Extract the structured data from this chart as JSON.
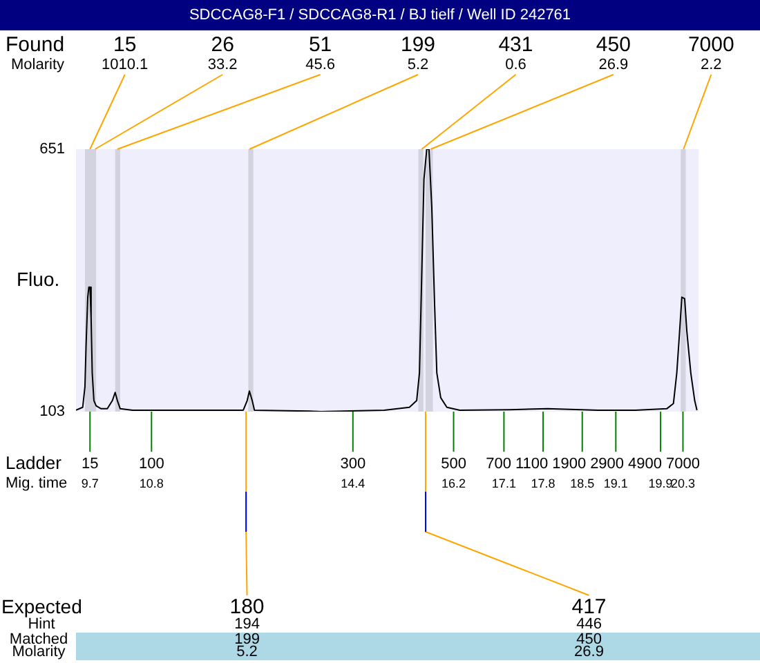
{
  "chart_data": {
    "type": "line",
    "title": "SDCCAG8-F1 / SDCCAG8-R1 / BJ tielf / Well ID 242761",
    "ylabel": "Fluo.",
    "x": [
      9.45,
      9.57,
      9.61,
      9.63,
      9.66,
      9.68,
      9.7,
      9.72,
      9.74,
      9.77,
      9.81,
      9.9,
      10.01,
      10.1,
      10.15,
      10.19,
      10.24,
      10.46,
      11.59,
      12.44,
      12.51,
      12.55,
      12.6,
      12.64,
      13.61,
      13.83,
      14.96,
      15.41,
      15.54,
      15.59,
      15.63,
      15.67,
      15.72,
      15.76,
      15.81,
      15.86,
      15.9,
      15.97,
      16.08,
      16.31,
      17.21,
      17.88,
      18.78,
      19.45,
      20.01,
      20.13,
      20.19,
      20.24,
      20.28,
      20.33,
      20.37,
      20.44,
      20.51,
      20.55
    ],
    "values": [
      106,
      112,
      155,
      241,
      342,
      363,
      363,
      299,
      184,
      126,
      115,
      109,
      109,
      126,
      143,
      126,
      109,
      106,
      106,
      106,
      126,
      146,
      126,
      106,
      104,
      103,
      106,
      112,
      126,
      184,
      386,
      588,
      651,
      651,
      530,
      328,
      184,
      132,
      112,
      106,
      107,
      109,
      106,
      106,
      109,
      120,
      184,
      270,
      342,
      339,
      270,
      184,
      126,
      106
    ],
    "color": "#000000",
    "marker": "none",
    "grid": false,
    "legend": false,
    "xlim": [
      9.45,
      20.58
    ],
    "ylim": [
      103,
      651
    ],
    "yticks": [
      103,
      651
    ],
    "xticks": [
      9.7,
      10.8,
      14.4,
      16.2,
      17.1,
      17.8,
      18.5,
      19.1,
      19.9,
      20.3
    ],
    "bands": [
      {
        "axis": "x",
        "from": 9.61,
        "to": 9.81,
        "color": "#d3d3e0"
      },
      {
        "axis": "x",
        "from": 10.15,
        "to": 10.24,
        "color": "#d3d3e0"
      },
      {
        "axis": "x",
        "from": 12.53,
        "to": 12.62,
        "color": "#d3d3e0"
      },
      {
        "axis": "x",
        "from": 15.57,
        "to": 15.66,
        "color": "#d3d3e0"
      },
      {
        "axis": "x",
        "from": 15.7,
        "to": 15.83,
        "color": "#d3d3e0"
      },
      {
        "axis": "x",
        "from": 20.26,
        "to": 20.35,
        "color": "#d3d3e0"
      }
    ],
    "annotations": [
      "Found",
      "Molarity",
      "Ladder",
      "Mig. time",
      "Expected",
      "Hint",
      "Matched",
      "Molarity",
      {
        "text": "15",
        "x": 9.7,
        "y": 651
      },
      "1010.1",
      {
        "text": "26",
        "x": 9.79,
        "y": 651
      },
      "33.2",
      {
        "text": "51",
        "x": 10.19,
        "y": 651
      },
      "45.6",
      {
        "text": "199",
        "x": 12.55,
        "y": 651
      },
      "5.2",
      {
        "text": "431",
        "x": 15.63,
        "y": 651
      },
      "0.6",
      {
        "text": "450",
        "x": 15.79,
        "y": 651
      },
      "26.9",
      {
        "text": "7000",
        "x": 20.31,
        "y": 651
      },
      "2.2",
      {
        "text": "15",
        "x": 9.7,
        "y": 103
      },
      {
        "text": "100",
        "x": 10.8,
        "y": 103
      },
      {
        "text": "300",
        "x": 14.4,
        "y": 103
      },
      {
        "text": "500",
        "x": 16.2,
        "y": 103
      },
      {
        "text": "700",
        "x": 17.1,
        "y": 103
      },
      {
        "text": "1100",
        "x": 17.8,
        "y": 103
      },
      {
        "text": "1900",
        "x": 18.5,
        "y": 103
      },
      {
        "text": "2900",
        "x": 19.1,
        "y": 103
      },
      {
        "text": "4900",
        "x": 19.9,
        "y": 103
      },
      {
        "text": "7000",
        "x": 20.3,
        "y": 103
      },
      {
        "text": "180",
        "x": 12.49,
        "y": 103
      },
      "194",
      "199",
      "5.2",
      {
        "text": "417",
        "x": 15.7,
        "y": 103
      },
      "446",
      "450",
      "26.9"
    ]
  }
}
